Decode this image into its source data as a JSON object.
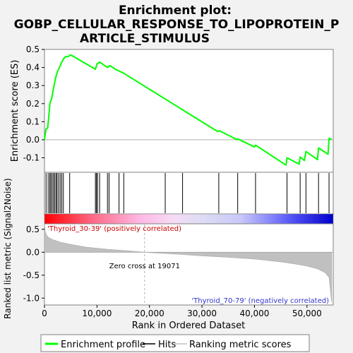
{
  "chart_data": {
    "type": "line",
    "title_lines": [
      "Enrichment plot:",
      "GOBP_CELLULAR_RESPONSE_TO_LIPOPROTEIN_P",
      "ARTICLE_STIMULUS"
    ],
    "top_panel": {
      "ylabel": "Enrichment score (ES)",
      "ylim": [
        -0.18,
        0.5
      ],
      "yticks": [
        {
          "v": -0.1,
          "label": "-0.1"
        },
        {
          "v": 0.0,
          "label": "0.0"
        },
        {
          "v": 0.1,
          "label": "0.1"
        },
        {
          "v": 0.2,
          "label": "0.2"
        },
        {
          "v": 0.3,
          "label": "0.3"
        },
        {
          "v": 0.4,
          "label": "0.4"
        },
        {
          "v": 0.5,
          "label": "0.5"
        }
      ],
      "series_color": "#00ff00",
      "es_points": [
        [
          0,
          0.0
        ],
        [
          300,
          0.06
        ],
        [
          600,
          0.065
        ],
        [
          800,
          0.12
        ],
        [
          1000,
          0.19
        ],
        [
          1100,
          0.21
        ],
        [
          1300,
          0.22
        ],
        [
          1500,
          0.25
        ],
        [
          1700,
          0.28
        ],
        [
          1900,
          0.31
        ],
        [
          2100,
          0.34
        ],
        [
          2300,
          0.36
        ],
        [
          2500,
          0.38
        ],
        [
          2700,
          0.39
        ],
        [
          3000,
          0.41
        ],
        [
          3300,
          0.43
        ],
        [
          3700,
          0.45
        ],
        [
          4000,
          0.46
        ],
        [
          4500,
          0.46
        ],
        [
          5000,
          0.47
        ],
        [
          9700,
          0.39
        ],
        [
          10000,
          0.42
        ],
        [
          10500,
          0.43
        ],
        [
          12000,
          0.4
        ],
        [
          12500,
          0.41
        ],
        [
          13000,
          0.4
        ],
        [
          13500,
          0.39
        ],
        [
          15000,
          0.37
        ],
        [
          33000,
          0.045
        ],
        [
          33300,
          0.05
        ],
        [
          36700,
          0.0
        ],
        [
          36800,
          0.005
        ],
        [
          40000,
          -0.04
        ],
        [
          40200,
          -0.03
        ],
        [
          46000,
          -0.14
        ],
        [
          46200,
          -0.1
        ],
        [
          48500,
          -0.135
        ],
        [
          48700,
          -0.095
        ],
        [
          49500,
          -0.115
        ],
        [
          49800,
          -0.065
        ],
        [
          52000,
          -0.11
        ],
        [
          52200,
          -0.045
        ],
        [
          54000,
          -0.08
        ],
        [
          54200,
          0.008
        ],
        [
          54700,
          0.003
        ]
      ]
    },
    "hits": [
      300,
      700,
      1000,
      1200,
      1450,
      1700,
      1950,
      2200,
      2400,
      2700,
      3000,
      3300,
      3600,
      4800,
      9700,
      9900,
      10100,
      10500,
      12000,
      12300,
      14200,
      15100,
      23000,
      26300,
      33200,
      36800,
      40200,
      46200,
      48700,
      49800,
      52200,
      54200
    ],
    "bottom_panel": {
      "ylabel": "Ranked list metric (Signal2Noise)",
      "ylim": [
        -1.15,
        0.62
      ],
      "yticks": [
        {
          "v": -1.0,
          "label": "-1.0"
        },
        {
          "v": -0.5,
          "label": "-0.5"
        },
        {
          "v": 0.0,
          "label": "0.0"
        },
        {
          "v": 0.5,
          "label": "0.5"
        }
      ],
      "metric_curve": [
        [
          0,
          0.62
        ],
        [
          150,
          0.45
        ],
        [
          400,
          0.37
        ],
        [
          800,
          0.32
        ],
        [
          1500,
          0.28
        ],
        [
          3000,
          0.22
        ],
        [
          5000,
          0.17
        ],
        [
          8000,
          0.11
        ],
        [
          12000,
          0.065
        ],
        [
          16000,
          0.03
        ],
        [
          19071,
          0.0
        ],
        [
          25000,
          -0.04
        ],
        [
          30000,
          -0.08
        ],
        [
          35000,
          -0.11
        ],
        [
          40000,
          -0.15
        ],
        [
          45000,
          -0.21
        ],
        [
          48000,
          -0.26
        ],
        [
          50000,
          -0.3
        ],
        [
          52000,
          -0.36
        ],
        [
          53500,
          -0.45
        ],
        [
          54200,
          -0.55
        ],
        [
          54700,
          -1.1
        ]
      ],
      "zero_cross_label": "Zero cross at 19071",
      "zero_cross": 19071,
      "pos_label": "'Thyroid_30-39' (positively correlated)",
      "neg_label": "'Thyroid_70-79' (negatively correlated)"
    },
    "xlabel": "Rank in Ordered Dataset",
    "xlim": [
      0,
      55000
    ],
    "xmax_rank": 54700,
    "xticks": [
      {
        "v": 0,
        "label": "0"
      },
      {
        "v": 10000,
        "label": "10,000"
      },
      {
        "v": 20000,
        "label": "20,000"
      },
      {
        "v": 30000,
        "label": "30,000"
      },
      {
        "v": 40000,
        "label": "40,000"
      },
      {
        "v": 50000,
        "label": "50,000"
      }
    ],
    "legend": {
      "position": "bottom",
      "items": [
        {
          "label": "Enrichment profile",
          "color": "#00ff00",
          "kind": "thick-line"
        },
        {
          "label": "Hits",
          "color": "#000000",
          "kind": "line"
        },
        {
          "label": "Ranking metric scores",
          "color": "#c0c0c0",
          "kind": "line"
        }
      ]
    }
  }
}
